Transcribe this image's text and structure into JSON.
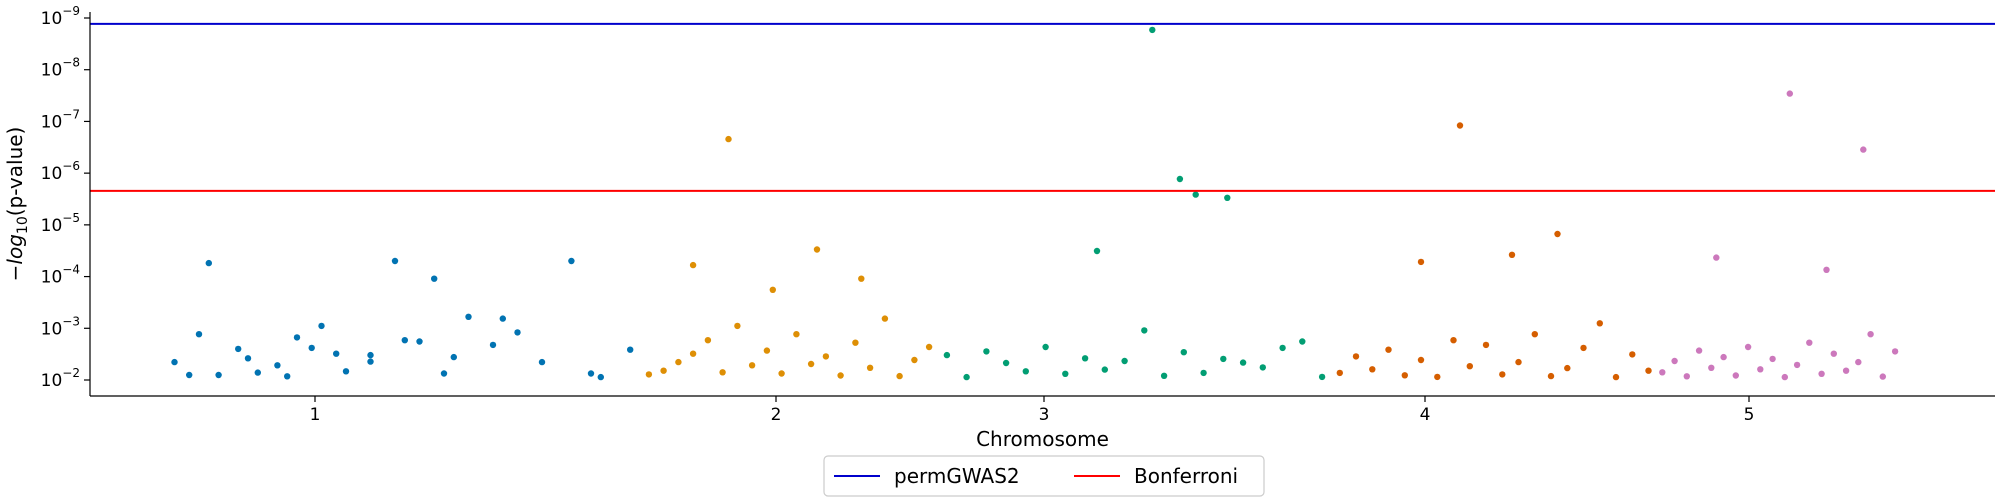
{
  "chart_data": {
    "type": "scatter",
    "title": "",
    "xlabel": "Chromosome",
    "ylabel_parts": [
      "−",
      "log",
      "10",
      "(p-value)"
    ],
    "y_scale": "log",
    "y_ticks": [
      {
        "value": 1e-09,
        "mantissa": "10",
        "exponent": "−9"
      },
      {
        "value": 1e-08,
        "mantissa": "10",
        "exponent": "−8"
      },
      {
        "value": 1e-07,
        "mantissa": "10",
        "exponent": "−7"
      },
      {
        "value": 1e-06,
        "mantissa": "10",
        "exponent": "−6"
      },
      {
        "value": 1e-05,
        "mantissa": "10",
        "exponent": "−5"
      },
      {
        "value": 0.0001,
        "mantissa": "10",
        "exponent": "−4"
      },
      {
        "value": 0.001,
        "mantissa": "10",
        "exponent": "−3"
      },
      {
        "value": 0.01,
        "mantissa": "10",
        "exponent": "−2"
      }
    ],
    "ylim": [
      1e-09,
      0.01
    ],
    "x_ticks": [
      "1",
      "2",
      "3",
      "4",
      "5"
    ],
    "grid": false,
    "legend": {
      "placement": "bottom-center",
      "entries": [
        {
          "label": "permGWAS2",
          "color": "#0000cc"
        },
        {
          "label": "Bonferroni",
          "color": "#ff0000"
        }
      ]
    },
    "thresholds": [
      {
        "name": "permGWAS2",
        "p_value": 1.3e-09,
        "color": "#0000cc"
      },
      {
        "name": "Bonferroni",
        "p_value": 2.2e-06,
        "color": "#ff0000"
      }
    ],
    "series": [
      {
        "chromosome": "1",
        "color": "#0173b2",
        "x": [
          0.05,
          0.1,
          0.14,
          0.18,
          0.22,
          0.26,
          0.3,
          0.35,
          0.4,
          0.45,
          0.5,
          0.55,
          0.6,
          0.65,
          0.7,
          0.75,
          0.8,
          0.86,
          0.92,
          0.98,
          0.12,
          0.28,
          0.38,
          0.52,
          0.62,
          0.2,
          0.45,
          0.72,
          0.08,
          0.33,
          0.58,
          0.9
        ],
        "p": [
          0.0045,
          0.0013,
          0.008,
          0.0025,
          0.0072,
          0.0052,
          0.0015,
          0.0009,
          0.0068,
          0.0033,
          5e-05,
          0.0018,
          0.0075,
          0.0006,
          0.0021,
          0.0012,
          0.0045,
          5e-05,
          0.0088,
          0.0026,
          5.5e-05,
          0.0085,
          0.0031,
          0.0017,
          0.0036,
          0.0038,
          0.0044,
          0.00065,
          0.008,
          0.0024,
          0.00011,
          0.0075
        ]
      },
      {
        "chromosome": "2",
        "color": "#de8f05",
        "x": [
          0.03,
          0.08,
          0.13,
          0.18,
          0.23,
          0.28,
          0.33,
          0.38,
          0.43,
          0.48,
          0.53,
          0.58,
          0.63,
          0.68,
          0.73,
          0.78,
          0.83,
          0.88,
          0.93,
          0.98,
          0.3,
          0.6,
          0.18,
          0.45,
          0.75
        ],
        "p": [
          0.0078,
          0.0066,
          0.0045,
          0.0031,
          0.0017,
          0.0071,
          0.0009,
          0.0052,
          0.0027,
          0.0075,
          0.0013,
          0.0049,
          0.0035,
          0.0082,
          0.0019,
          0.0058,
          0.00065,
          0.0084,
          0.0041,
          0.0023,
          2.2e-07,
          3e-05,
          6e-05,
          0.00018,
          0.00011
        ]
      },
      {
        "chromosome": "3",
        "color": "#029e73",
        "x": [
          0.03,
          0.08,
          0.13,
          0.18,
          0.23,
          0.28,
          0.33,
          0.38,
          0.43,
          0.48,
          0.53,
          0.58,
          0.63,
          0.68,
          0.73,
          0.78,
          0.83,
          0.88,
          0.93,
          0.98,
          0.55,
          0.62,
          0.66,
          0.74,
          0.41
        ],
        "p": [
          0.0033,
          0.0088,
          0.0028,
          0.0047,
          0.0068,
          0.0023,
          0.0076,
          0.0038,
          0.0063,
          0.0043,
          0.0011,
          0.0083,
          0.0029,
          0.0073,
          0.0039,
          0.0046,
          0.0057,
          0.0024,
          0.0018,
          0.0087,
          1.7e-09,
          1.3e-06,
          2.6e-06,
          3e-06,
          3.2e-05
        ]
      },
      {
        "chromosome": "4",
        "color": "#d55e00",
        "x": [
          0.03,
          0.08,
          0.13,
          0.18,
          0.23,
          0.28,
          0.33,
          0.38,
          0.43,
          0.48,
          0.53,
          0.58,
          0.63,
          0.68,
          0.73,
          0.78,
          0.83,
          0.88,
          0.93,
          0.98,
          0.4,
          0.28,
          0.56,
          0.7
        ],
        "p": [
          0.0073,
          0.0035,
          0.0062,
          0.0026,
          0.0081,
          0.0041,
          0.0087,
          0.0017,
          0.0054,
          0.0021,
          0.0078,
          0.0045,
          0.0013,
          0.0084,
          0.0059,
          0.0024,
          0.0008,
          0.0088,
          0.0032,
          0.0066,
          1.2e-07,
          5.2e-05,
          3.8e-05,
          1.5e-05
        ]
      },
      {
        "chromosome": "5",
        "color": "#cc78bc",
        "x": [
          0.03,
          0.08,
          0.13,
          0.18,
          0.23,
          0.28,
          0.33,
          0.38,
          0.43,
          0.48,
          0.53,
          0.58,
          0.63,
          0.68,
          0.73,
          0.78,
          0.83,
          0.88,
          0.93,
          0.98,
          0.55,
          0.85,
          0.25,
          0.7
        ],
        "p": [
          0.0071,
          0.0043,
          0.0085,
          0.0027,
          0.0058,
          0.0036,
          0.0082,
          0.0023,
          0.0062,
          0.0039,
          0.0088,
          0.0051,
          0.0019,
          0.0076,
          0.0031,
          0.0066,
          0.0045,
          0.0013,
          0.0086,
          0.0028,
          2.9e-08,
          3.5e-07,
          4.3e-05,
          7.4e-05
        ]
      }
    ]
  }
}
